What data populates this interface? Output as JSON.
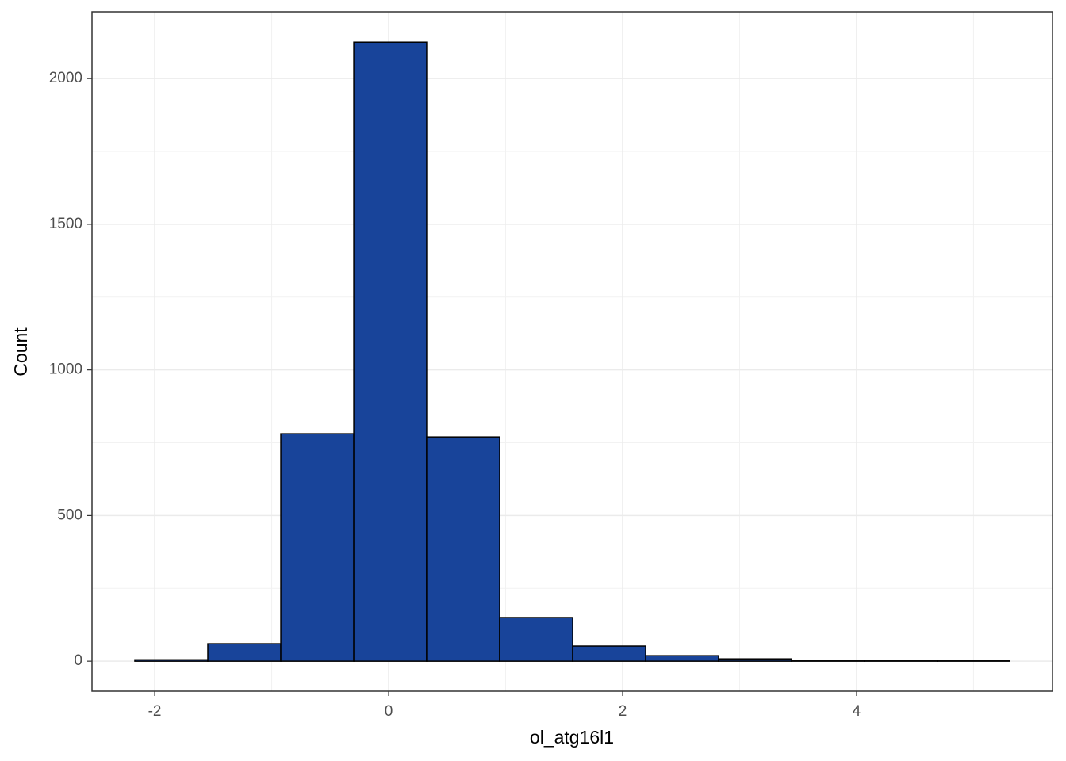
{
  "chart_data": {
    "type": "histogram",
    "x_label": "ol_atg16l1",
    "y_label": "Count",
    "bins": [
      -2.17,
      -1.546,
      -0.922,
      -0.298,
      0.325,
      0.949,
      1.573,
      2.197,
      2.82,
      3.444,
      4.068,
      4.69,
      5.308
    ],
    "counts": [
      5,
      60,
      781,
      2125,
      770,
      150,
      52,
      19,
      8,
      1,
      1,
      1
    ],
    "color": "#18449a",
    "xlim": [
      -2.536,
      5.675
    ],
    "ylim": [
      -103,
      2229
    ],
    "xticks": [
      -2,
      0,
      2,
      4
    ],
    "yticks": [
      0,
      500,
      1000,
      1500,
      2000
    ],
    "grid": true
  }
}
